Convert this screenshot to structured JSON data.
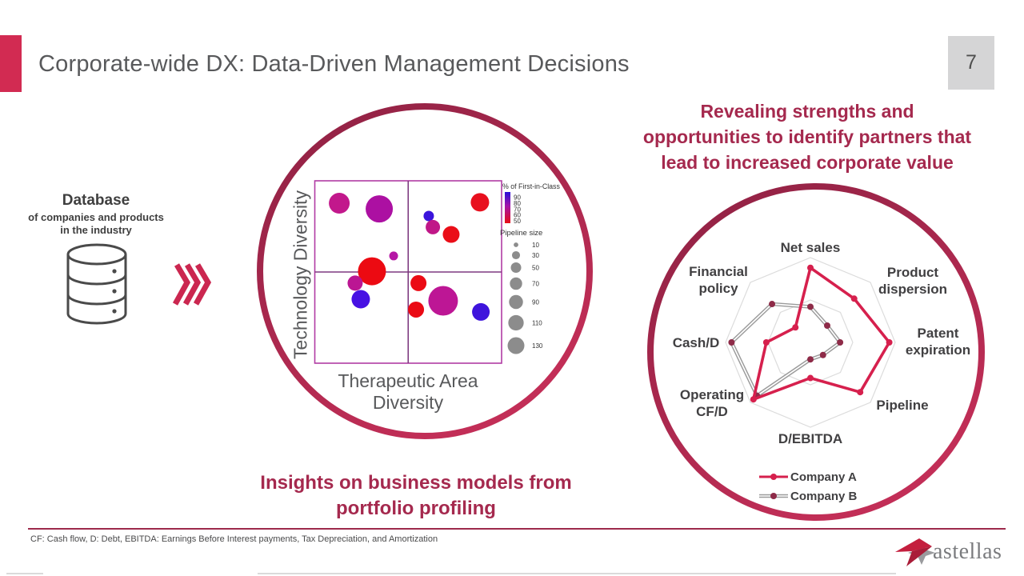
{
  "slide": {
    "title": "Corporate-wide DX: Data-Driven Management Decisions",
    "page_number": "7",
    "footnote": "CF: Cash flow, D: Debt, EBITDA: Earnings Before Interest payments, Tax Depreciation, and Amortization",
    "logo_text": "astellas",
    "accent_color": "#D22B52",
    "maroon_text_color": "#A5294E",
    "circle_ring_color": "#A0254B"
  },
  "database_block": {
    "title": "Database",
    "subtitle1": "of companies and products",
    "subtitle2": "in the industry"
  },
  "captions": {
    "insights1": "Insights on business models from",
    "insights2": "portfolio profiling",
    "revealing1": "Revealing strengths and",
    "revealing2": "opportunities to identify partners that",
    "revealing3": "lead to increased corporate value"
  },
  "chart_data": [
    {
      "type": "scatter",
      "title": "Portfolio profiling bubble chart (quadrant plot)",
      "xlabel": "Therapeutic Area Diversity",
      "ylabel": "Technology Diversity",
      "quadrant_grid": true,
      "axis_ticks_shown": false,
      "frame_color": "#B13CA4",
      "divider_color": "#7E3A80",
      "color_legend": {
        "title": "% of First-in-Class",
        "ticks": [
          "90",
          "80",
          "70",
          "60",
          "50"
        ],
        "gradient_top": "#2A0FD8",
        "gradient_mid": "#A414A8",
        "gradient_bottom": "#E80E16"
      },
      "size_legend": {
        "title": "Pipeline size",
        "sizes": [
          "10",
          "30",
          "50",
          "70",
          "90",
          "110",
          "130"
        ],
        "dot_color": "#8C8C8C"
      },
      "points": [
        {
          "x": 0.131,
          "y": 0.123,
          "r": 13.0,
          "color": "#C2188C"
        },
        {
          "x": 0.345,
          "y": 0.154,
          "r": 17.0,
          "color": "#AC10A2"
        },
        {
          "x": 0.884,
          "y": 0.118,
          "r": 11.5,
          "color": "#E8101E"
        },
        {
          "x": 0.61,
          "y": 0.193,
          "r": 6.5,
          "color": "#3A14DC"
        },
        {
          "x": 0.632,
          "y": 0.254,
          "r": 9.0,
          "color": "#C01788"
        },
        {
          "x": 0.73,
          "y": 0.294,
          "r": 10.5,
          "color": "#EA0E18"
        },
        {
          "x": 0.422,
          "y": 0.412,
          "r": 5.5,
          "color": "#B517A5"
        },
        {
          "x": 0.306,
          "y": 0.496,
          "r": 17.5,
          "color": "#EC0A12"
        },
        {
          "x": 0.216,
          "y": 0.561,
          "r": 9.5,
          "color": "#BB1693"
        },
        {
          "x": 0.246,
          "y": 0.649,
          "r": 11.5,
          "color": "#4711E3"
        },
        {
          "x": 0.555,
          "y": 0.561,
          "r": 10.0,
          "color": "#EB0A14"
        },
        {
          "x": 0.542,
          "y": 0.706,
          "r": 10.0,
          "color": "#EA0A14"
        },
        {
          "x": 0.687,
          "y": 0.658,
          "r": 18.5,
          "color": "#BD1695"
        },
        {
          "x": 0.889,
          "y": 0.719,
          "r": 11.0,
          "color": "#3E14DC"
        }
      ]
    },
    {
      "type": "radar",
      "title": "Company profile radar (8 axes)",
      "categories": [
        "Net sales",
        "Product dispersion",
        "Patent expiration",
        "Pipeline",
        "D/EBITDA",
        "Operating CF/D",
        "Cash/D",
        "Financial policy"
      ],
      "range": [
        0,
        1
      ],
      "rings": [
        0.5,
        1
      ],
      "grid_color": "#DCDCDC",
      "series": [
        {
          "name": "Company B",
          "style": "tube",
          "line_color": "#9B9B9B",
          "dot_color": "#8E2B48",
          "values": [
            0.42,
            0.28,
            0.35,
            0.21,
            0.2,
            0.89,
            0.93,
            0.64
          ]
        },
        {
          "name": "Company A",
          "style": "solid",
          "line_color": "#D6204D",
          "dot_color": "#D6204D",
          "values": [
            0.88,
            0.73,
            0.93,
            0.83,
            0.42,
            0.95,
            0.52,
            0.25
          ]
        }
      ],
      "legend_position": "bottom"
    }
  ]
}
